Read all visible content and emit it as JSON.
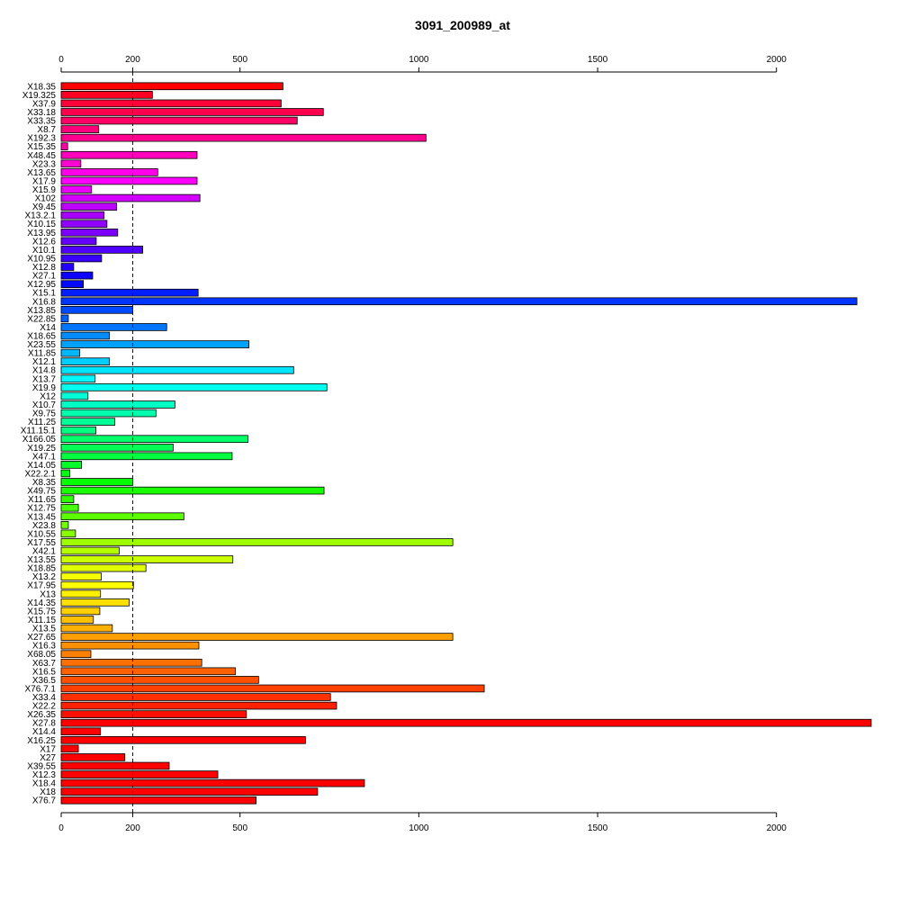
{
  "chart_data": {
    "type": "bar",
    "orientation": "horizontal",
    "title": "3091_200989_at",
    "xlabel": "",
    "ylabel": "",
    "xlim": [
      0,
      2270
    ],
    "grid": false,
    "legend": "none",
    "top_axis_ticks": [
      0,
      200,
      500,
      1000,
      1500,
      2000
    ],
    "bottom_axis_ticks": [
      0,
      200,
      500,
      1000,
      1500,
      2000
    ],
    "reference_line": 200,
    "reference_line_color": "#000080",
    "categories": [
      "X18.35",
      "X19.325",
      "X37.9",
      "X33.18",
      "X33.35",
      "X8.7",
      "X192.3",
      "X15.35",
      "X48.45",
      "X23.3",
      "X13.65",
      "X17.9",
      "X15.9",
      "X102",
      "X9.45",
      "X13.2.1",
      "X10.15",
      "X13.95",
      "X12.6",
      "X10.1",
      "X10.95",
      "X12.8",
      "X27.1",
      "X12.95",
      "X15.1",
      "X16.8",
      "X13.85",
      "X22.85",
      "X14",
      "X18.65",
      "X23.55",
      "X11.85",
      "X12.1",
      "X14.8",
      "X13.7",
      "X19.9",
      "X12",
      "X10.7",
      "X9.75",
      "X11.25",
      "X11.15.1",
      "X166.05",
      "X19.25",
      "X47.1",
      "X14.05",
      "X22.2.1",
      "X8.35",
      "X49.75",
      "X11.65",
      "X12.75",
      "X13.45",
      "X23.8",
      "X10.55",
      "X17.55",
      "X42.1",
      "X13.55",
      "X18.85",
      "X13.2",
      "X17.95",
      "X13",
      "X14.35",
      "X15.75",
      "X11.15",
      "X13.5",
      "X27.65",
      "X16.3",
      "X68.05",
      "X63.7",
      "X16.5",
      "X36.5",
      "X76.7.1",
      "X33.4",
      "X22.2",
      "X26.35",
      "X27.8",
      "X14.4",
      "X16.25",
      "X17",
      "X27",
      "X39.55",
      "X12.3",
      "X18.4",
      "X18",
      "X76.7"
    ],
    "values": [
      620,
      255,
      615,
      733,
      660,
      105,
      1020,
      18,
      380,
      55,
      270,
      380,
      85,
      388,
      155,
      120,
      128,
      158,
      98,
      228,
      113,
      35,
      88,
      62,
      383,
      2225,
      200,
      20,
      295,
      135,
      525,
      52,
      135,
      650,
      95,
      743,
      75,
      318,
      265,
      150,
      97,
      522,
      313,
      478,
      57,
      24,
      200,
      735,
      35,
      48,
      343,
      20,
      40,
      1095,
      162,
      480,
      237,
      112,
      202,
      110,
      190,
      108,
      90,
      143,
      1095,
      385,
      83,
      393,
      487,
      552,
      1183,
      753,
      770,
      518,
      2265,
      110,
      683,
      48,
      178,
      302,
      438,
      848,
      717,
      545
    ],
    "colors": [
      "#ff0000",
      "#ff0022",
      "#ff0038",
      "#ff004e",
      "#ff0064",
      "#ff007a",
      "#ff0090",
      "#ff00a6",
      "#ff00bc",
      "#ff00d2",
      "#ff00e8",
      "#ff00fe",
      "#ea00ff",
      "#d400ff",
      "#be00ff",
      "#a800ff",
      "#9200ff",
      "#7c00ff",
      "#6600ff",
      "#5000ff",
      "#3a00ff",
      "#2400ff",
      "#0e00ff",
      "#0008ff",
      "#001eff",
      "#0034ff",
      "#004aff",
      "#0060ff",
      "#0076ff",
      "#008cff",
      "#00a2ff",
      "#00b8ff",
      "#00ceff",
      "#00e4ff",
      "#00faff",
      "#00ffee",
      "#00ffd8",
      "#00ffc2",
      "#00ffac",
      "#00ff96",
      "#00ff80",
      "#00ff6a",
      "#00ff54",
      "#00ff3e",
      "#00ff28",
      "#00ff12",
      "#04ff00",
      "#1aff00",
      "#30ff00",
      "#46ff00",
      "#5cff00",
      "#72ff00",
      "#88ff00",
      "#9eff00",
      "#b4ff00",
      "#caff00",
      "#e0ff00",
      "#f6ff00",
      "#ffff00",
      "#fff000",
      "#ffe000",
      "#ffd000",
      "#ffc000",
      "#ffb000",
      "#ffa000",
      "#ff9000",
      "#ff8000",
      "#ff7000",
      "#ff6000",
      "#ff5000",
      "#ff4000",
      "#ff3000",
      "#ff2000",
      "#ff1000",
      "#ff0000",
      "#ff0000",
      "#ff0000",
      "#ff0000",
      "#ff0000",
      "#ff0000",
      "#ff0000",
      "#ff0000",
      "#ff0000",
      "#ff0000"
    ]
  }
}
